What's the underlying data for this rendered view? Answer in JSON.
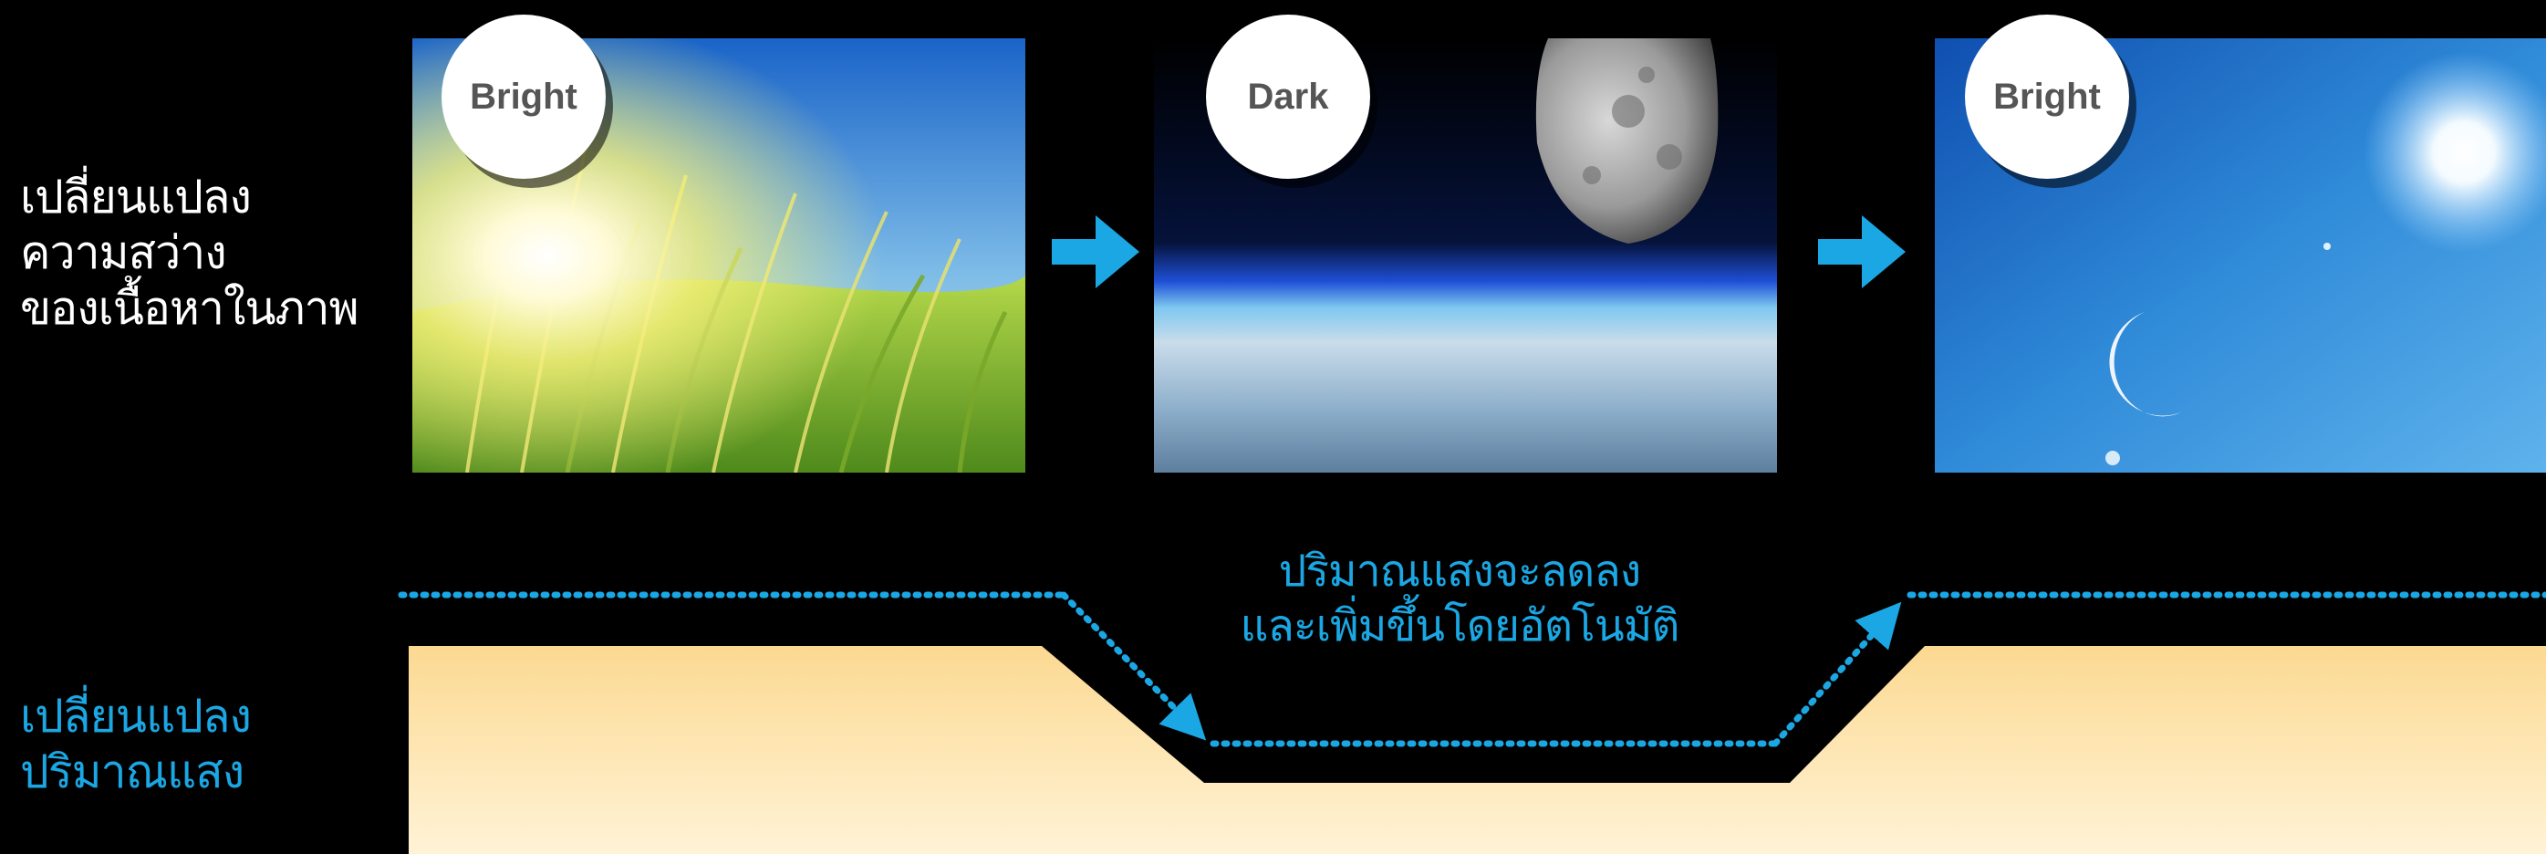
{
  "colors": {
    "background": "#000000",
    "label_white": "#ffffff",
    "accent_blue": "#1aa7e3",
    "light_fill_top": "#fcd992",
    "light_fill_bottom": "#fff3d6",
    "badge_bg": "#ffffff",
    "badge_text": "#555555"
  },
  "labels": {
    "content_brightness": [
      "เปลี่ยนแปลง",
      "ความสว่าง",
      "ของเนื้อหาในภาพ"
    ],
    "light_amount": [
      "เปลี่ยนแปลง",
      "ปริมาณแสง"
    ]
  },
  "panels": [
    {
      "badge": "Bright",
      "scene": "sunlit wheat field"
    },
    {
      "badge": "Dark",
      "scene": "moon over earth horizon"
    },
    {
      "badge": "Bright",
      "scene": "sun and moon in blue sky"
    }
  ],
  "arrows": [
    "arrow-right-icon",
    "arrow-right-icon"
  ],
  "caption": [
    "ปริมาณแสงจะลดลง",
    "และเพิ่มขึ้นโดยอัตโนมัติ"
  ]
}
